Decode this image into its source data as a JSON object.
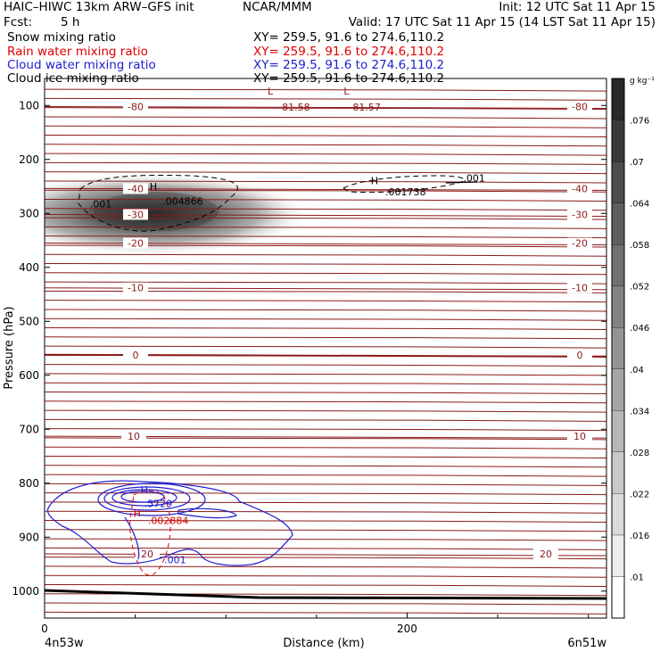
{
  "header": {
    "model": "HAIC–HIWC 13km ARW–GFS init",
    "org": "NCAR/MMM",
    "init": "Init: 12 UTC Sat 11 Apr 15",
    "fcst_label": "Fcst:",
    "fcst_value": "5 h",
    "valid": "Valid: 17 UTC Sat 11 Apr 15 (14 LST Sat 11 Apr 15)"
  },
  "fields": [
    {
      "name": "Snow mixing ratio",
      "xy": "XY= 259.5, 91.6 to 274.6,110.2",
      "color": "#000000"
    },
    {
      "name": "Rain water mixing ratio",
      "xy": "XY= 259.5, 91.6 to 274.6,110.2",
      "color": "#e00000"
    },
    {
      "name": "Cloud water mixing ratio",
      "xy": "XY= 259.5, 91.6 to 274.6,110.2",
      "color": "#2020d0"
    },
    {
      "name": "Cloud ice mixing ratio",
      "xy": "XY= 259.5, 91.6 to 274.6,110.2",
      "color": "#000000"
    }
  ],
  "chart_data": {
    "type": "contour cross-section",
    "xlabel": "Distance (km)",
    "ylabel": "Pressure (hPa)",
    "xlim": [
      0,
      310
    ],
    "ylim": [
      1050,
      50
    ],
    "xticks": [
      0,
      200
    ],
    "yticks": [
      100,
      200,
      300,
      400,
      500,
      600,
      700,
      800,
      900,
      1000
    ],
    "x_end_labels": [
      "4n53w",
      "6n51w"
    ],
    "colorbar": {
      "unit": "g kg⁻¹",
      "ticks": [
        ".01",
        ".016",
        ".022",
        ".028",
        ".034",
        ".04",
        ".046",
        ".052",
        ".058",
        ".064",
        ".07",
        ".076"
      ]
    },
    "temperature_contours": [
      {
        "label": "-80",
        "p": 102
      },
      {
        "label": "-40",
        "p": 254
      },
      {
        "label": "-30",
        "p": 302
      },
      {
        "label": "-20",
        "p": 355
      },
      {
        "label": "-10",
        "p": 438
      },
      {
        "label": "0",
        "p": 562
      },
      {
        "label": "10",
        "p": 713
      },
      {
        "label": "20",
        "p": 931
      }
    ],
    "annotations": [
      {
        "text": "L",
        "x": 123,
        "p": 73,
        "color": "#8b1a1a"
      },
      {
        "text": "L",
        "x": 165,
        "p": 73,
        "color": "#8b1a1a"
      },
      {
        "text": "-81.58",
        "x": 129,
        "p": 103,
        "color": "#8b1a1a"
      },
      {
        "text": "-81.57",
        "x": 168,
        "p": 103,
        "color": "#8b1a1a"
      },
      {
        "text": "H",
        "x": 58,
        "p": 250,
        "color": "#000000"
      },
      {
        "text": ".004866",
        "x": 65,
        "p": 277,
        "color": "#000000"
      },
      {
        "text": ".001",
        "x": 25,
        "p": 282,
        "color": "#000000"
      },
      {
        "text": "H",
        "x": 180,
        "p": 239,
        "color": "#000000"
      },
      {
        "text": ".001738",
        "x": 188,
        "p": 260,
        "color": "#000000"
      },
      {
        "text": ".001",
        "x": 231,
        "p": 234,
        "color": "#000000"
      },
      {
        "text": "H",
        "x": 53,
        "p": 812,
        "color": "#2020d0"
      },
      {
        "text": ".5729",
        "x": 55,
        "p": 838,
        "color": "#2020d0"
      },
      {
        "text": "H",
        "x": 49,
        "p": 856,
        "color": "#e00000"
      },
      {
        "text": ".002884",
        "x": 57,
        "p": 869,
        "color": "#e00000"
      },
      {
        "text": ".001",
        "x": 66,
        "p": 942,
        "color": "#2020d0"
      }
    ]
  }
}
